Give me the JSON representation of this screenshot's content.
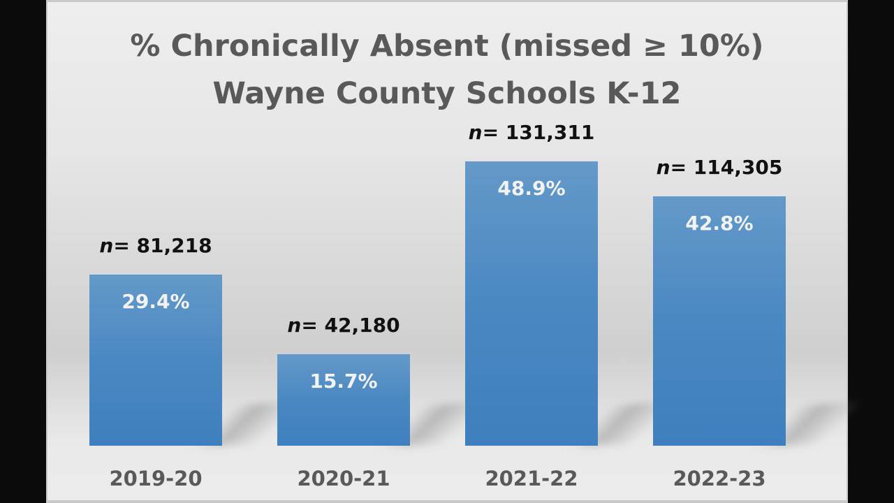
{
  "chart_data": {
    "type": "bar",
    "title": "% Chronically Absent (missed ≥ 10%)",
    "subtitle": "Wayne County Schools K-12",
    "categories": [
      "2019-20",
      "2020-21",
      "2021-22",
      "2022-23"
    ],
    "values": [
      29.4,
      15.7,
      48.9,
      42.8
    ],
    "value_labels": [
      "29.4%",
      "15.7%",
      "48.9%",
      "42.8%"
    ],
    "n_prefix": "n",
    "n_labels": [
      "= 81,218",
      "= 42,180",
      "= 131,311",
      "= 114,305"
    ],
    "ylim": [
      0,
      50
    ],
    "grid": false,
    "bar_color": "#4a88c2",
    "xlabel": "",
    "ylabel": ""
  }
}
